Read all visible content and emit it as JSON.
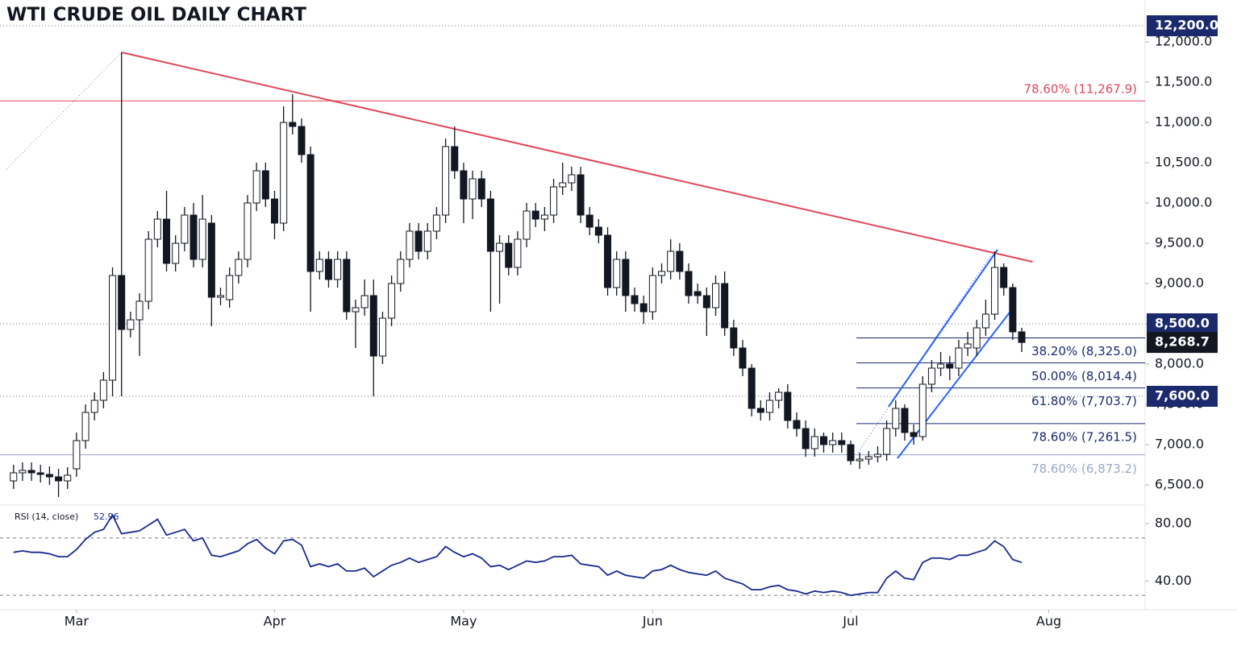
{
  "chart_data": {
    "type": "candlestick",
    "title": "WTI CRUDE OIL DAILY CHART",
    "xlim": [
      -1.5,
      125.7
    ],
    "xticks": [
      {
        "value": 7,
        "label": "Mar"
      },
      {
        "value": 29,
        "label": "Apr"
      },
      {
        "value": 50,
        "label": "May"
      },
      {
        "value": 71,
        "label": "Jun"
      },
      {
        "value": 93,
        "label": "Jul"
      },
      {
        "value": 115,
        "label": "Aug"
      }
    ],
    "ylim": [
      6270,
      12440
    ],
    "yticks": [
      {
        "value": 6500,
        "label": "6,500.0"
      },
      {
        "value": 7000,
        "label": "7,000.0"
      },
      {
        "value": 7500,
        "label": "7,500.0"
      },
      {
        "value": 8000,
        "label": "8,000.0"
      },
      {
        "value": 8500,
        "label": "8,500.0"
      },
      {
        "value": 9000,
        "label": "9,000.0"
      },
      {
        "value": 9500,
        "label": "9,500.0"
      },
      {
        "value": 10000,
        "label": "10,000.0"
      },
      {
        "value": 10500,
        "label": "10,500.0"
      },
      {
        "value": 11000,
        "label": "11,000.0"
      },
      {
        "value": 11500,
        "label": "11,500.0"
      },
      {
        "value": 12000,
        "label": "12,000.0"
      }
    ],
    "up_color": "#ffffff",
    "down_color": "#131722",
    "open": [
      6550,
      6650,
      6680,
      6650,
      6630,
      6600,
      6550,
      6700,
      7050,
      7400,
      7550,
      7800,
      9100,
      8430,
      8550,
      8780,
      9550,
      9800,
      9250,
      9500,
      9850,
      9300,
      9750,
      8830,
      8800,
      9100,
      9300,
      10000,
      10400,
      10050,
      9750,
      11000,
      10950,
      10600,
      9150,
      9300,
      9050,
      9300,
      8650,
      8700,
      8850,
      8100,
      8570,
      9000,
      9300,
      9650,
      9400,
      9650,
      9850,
      10700,
      10400,
      10050,
      10300,
      10050,
      9400,
      9500,
      9200,
      9550,
      9900,
      9800,
      9850,
      10200,
      10250,
      10350,
      9850,
      9700,
      9600,
      8950,
      9300,
      8850,
      8750,
      8650,
      9100,
      9150,
      9400,
      9150,
      8900,
      8850,
      8700,
      9000,
      8450,
      8200,
      7950,
      7450,
      7400,
      7550,
      7650,
      7300,
      7200,
      6950,
      7100,
      7000,
      7050,
      7000,
      6800,
      6820,
      6850,
      6880,
      7200,
      7450,
      7150,
      7100,
      7750,
      7950,
      8000,
      7950,
      8200,
      8200,
      8450,
      8620,
      9200,
      8950,
      8400
    ],
    "high": [
      6750,
      6780,
      6780,
      6750,
      6730,
      6700,
      6720,
      7150,
      7500,
      7650,
      7900,
      9200,
      11870,
      8650,
      8880,
      9650,
      9900,
      10150,
      9600,
      9950,
      10000,
      10100,
      9850,
      8950,
      9200,
      9400,
      10100,
      10500,
      10500,
      10150,
      11200,
      11350,
      11050,
      10700,
      9400,
      9400,
      9400,
      9400,
      8800,
      9050,
      9050,
      8650,
      9100,
      9400,
      9750,
      9750,
      9750,
      9950,
      10800,
      10950,
      10500,
      10400,
      10400,
      10150,
      9600,
      9600,
      9650,
      10000,
      10000,
      9950,
      10300,
      10500,
      10450,
      10450,
      9950,
      9800,
      9700,
      9400,
      9400,
      8950,
      8850,
      9200,
      9250,
      9550,
      9500,
      9250,
      9000,
      8950,
      9100,
      9150,
      8550,
      8300,
      8000,
      7550,
      7650,
      7700,
      7750,
      7400,
      7300,
      7200,
      7150,
      7150,
      7150,
      7050,
      6900,
      6920,
      6980,
      7300,
      7550,
      7500,
      7250,
      7850,
      8050,
      8150,
      8100,
      8300,
      8400,
      8550,
      8800,
      9400,
      9250,
      9000,
      8450
    ],
    "low": [
      6450,
      6550,
      6550,
      6530,
      6500,
      6350,
      6450,
      6600,
      6950,
      7300,
      7450,
      7600,
      7600,
      8330,
      8100,
      8680,
      9450,
      9150,
      9150,
      9400,
      9200,
      9200,
      8470,
      8730,
      8700,
      9000,
      9200,
      9900,
      9950,
      9550,
      9650,
      10850,
      10500,
      8650,
      9050,
      8950,
      8950,
      8550,
      8200,
      8600,
      7600,
      8000,
      8470,
      8900,
      9200,
      9300,
      9300,
      9550,
      9750,
      10300,
      9750,
      9800,
      9950,
      8650,
      8750,
      9100,
      9100,
      9450,
      9700,
      9650,
      9750,
      10100,
      10150,
      9750,
      9600,
      9500,
      8850,
      8850,
      8650,
      8650,
      8500,
      8550,
      9000,
      9050,
      9050,
      8750,
      8750,
      8350,
      8600,
      8350,
      8100,
      7850,
      7350,
      7300,
      7300,
      7450,
      7200,
      7100,
      6850,
      6850,
      6900,
      6900,
      6900,
      6750,
      6700,
      6750,
      6780,
      6800,
      7100,
      7050,
      7000,
      7050,
      7650,
      7850,
      7800,
      7850,
      8100,
      8100,
      8350,
      8550,
      8850,
      8300,
      8150
    ],
    "close": [
      6650,
      6680,
      6650,
      6630,
      6600,
      6550,
      6620,
      7050,
      7400,
      7550,
      7800,
      9100,
      8430,
      8550,
      8780,
      9550,
      9800,
      9250,
      9500,
      9850,
      9300,
      9800,
      8830,
      8850,
      9100,
      9300,
      10000,
      10400,
      10050,
      9750,
      11000,
      10950,
      10600,
      9150,
      9300,
      9050,
      9300,
      8650,
      8700,
      8850,
      8100,
      8570,
      9000,
      9300,
      9650,
      9400,
      9650,
      9850,
      10700,
      10400,
      10050,
      10300,
      10050,
      9400,
      9500,
      9200,
      9550,
      9900,
      9800,
      9850,
      10200,
      10250,
      10350,
      9850,
      9700,
      9600,
      8950,
      9300,
      8850,
      8750,
      8650,
      9100,
      9150,
      9400,
      9150,
      8850,
      8850,
      8700,
      9000,
      8450,
      8200,
      7950,
      7450,
      7400,
      7550,
      7650,
      7300,
      7200,
      6950,
      7100,
      7000,
      7050,
      7000,
      6800,
      6820,
      6850,
      6880,
      7200,
      7450,
      7150,
      7100,
      7750,
      7950,
      8000,
      7950,
      8200,
      8250,
      8450,
      8620,
      9200,
      8950,
      8400,
      8268.7
    ],
    "price_tags": [
      {
        "value": 12200,
        "label": "12,200.0",
        "color": "#1a2a6c"
      },
      {
        "value": 8500,
        "label": "8,500.0",
        "color": "#1a2a6c"
      },
      {
        "value": 8268.7,
        "label": "8,268.7",
        "color": "#131722"
      },
      {
        "value": 7600,
        "label": "7,600.0",
        "color": "#1a2a6c"
      }
    ],
    "levels": [
      {
        "value": 11267.9,
        "label": "78.60% (11,267.9)",
        "color": "#e0475a"
      },
      {
        "value": 6873.2,
        "label": "78.60% (6,873.2)",
        "color": "#9aa8c8"
      }
    ],
    "fib_levels": [
      {
        "value": 8325,
        "label": "38.20% (8,325.0)"
      },
      {
        "value": 8014.4,
        "label": "50.00% (8,014.4)"
      },
      {
        "value": 7703.7,
        "label": "61.80% (7,703.7)"
      },
      {
        "value": 7261.5,
        "label": "78.60% (7,261.5)"
      }
    ],
    "fib_color": "#1a2a6c",
    "trendlines": [
      {
        "color": "#e0475a",
        "points": [
          {
            "x": 12,
            "y": 11870
          },
          {
            "x": 113.2,
            "y": 9270
          }
        ]
      },
      {
        "color": "#2962ff",
        "points": [
          {
            "x": 97.2,
            "y": 7470
          },
          {
            "x": 109.3,
            "y": 9420
          }
        ]
      },
      {
        "color": "#2962ff",
        "points": [
          {
            "x": 98.2,
            "y": 6830
          },
          {
            "x": 111.2,
            "y": 8720
          }
        ]
      }
    ],
    "rsi": {
      "label": "RSI (14, close)",
      "color": "#1a2a8c",
      "ylim": [
        20,
        92.4
      ],
      "yticks": [
        {
          "value": 80,
          "label": "80.00"
        },
        {
          "value": 40,
          "label": "40.00"
        }
      ],
      "bands": [
        70,
        30
      ],
      "values": [
        60,
        61,
        60,
        60,
        59,
        57,
        57,
        62,
        69,
        74,
        76,
        86,
        73,
        74,
        75,
        79,
        83,
        72,
        74,
        76,
        68,
        70,
        58,
        57,
        59,
        61,
        66,
        69,
        63,
        59,
        68,
        69,
        65,
        50,
        52,
        50,
        52,
        47,
        47,
        49,
        43,
        47,
        51,
        53,
        56,
        53,
        55,
        57,
        64,
        60,
        57,
        59,
        56,
        50,
        51,
        48,
        51,
        54,
        53,
        54,
        57,
        57,
        58,
        52,
        51,
        50,
        44,
        47,
        44,
        43,
        42,
        47,
        48,
        51,
        48,
        46,
        45,
        44,
        47,
        42,
        40,
        38,
        34,
        34,
        36,
        37,
        34,
        33,
        31,
        33,
        32,
        33,
        32,
        30,
        31,
        32,
        32,
        42,
        47,
        42,
        41,
        53,
        56,
        56,
        55,
        58,
        58,
        60,
        62,
        68,
        64,
        55,
        52.96
      ]
    }
  }
}
